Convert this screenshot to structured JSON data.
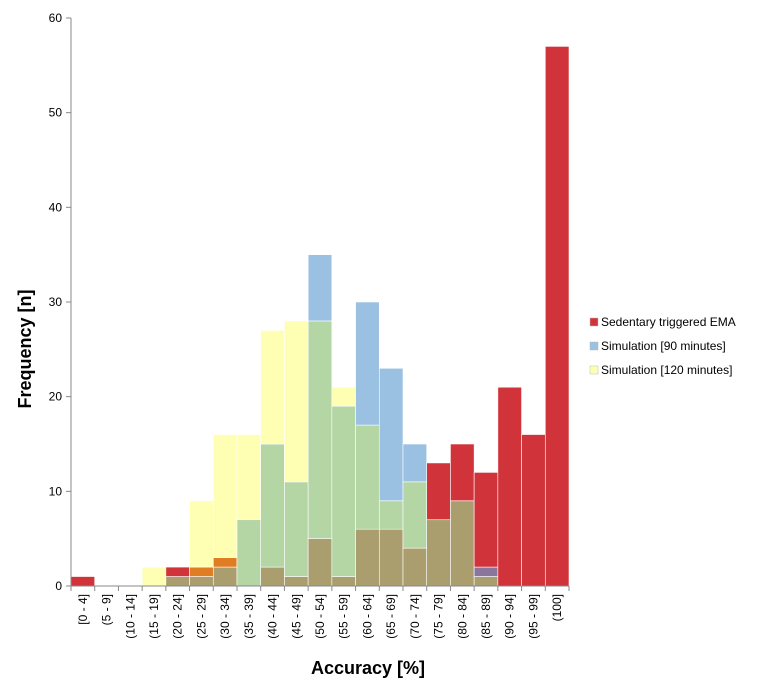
{
  "chart_data": {
    "type": "bar",
    "bar_mode": "overlay",
    "xlabel": "Accuracy [%]",
    "ylabel": "Frequency [n]",
    "ylim": [
      0,
      60
    ],
    "yticks": [
      0,
      10,
      20,
      30,
      40,
      50,
      60
    ],
    "grid": false,
    "legend_position": "right",
    "categories": [
      "[0 - 4]",
      "(5 - 9]",
      "(10 - 14]",
      "(15 - 19]",
      "(20 - 24]",
      "(25 - 29]",
      "(30 - 34]",
      "(35 - 39]",
      "(40 - 44]",
      "(45 - 49]",
      "(50 - 54]",
      "(55 - 59]",
      "(60 - 64]",
      "(65 - 69]",
      "(70 - 74]",
      "(75 - 79]",
      "(80 - 84]",
      "(85 - 89]",
      "(90 - 94]",
      "(95 - 99]",
      "(100]"
    ],
    "series": [
      {
        "name": "Sedentary triggered EMA",
        "color": "#d0343a",
        "values": [
          1,
          0,
          0,
          0,
          2,
          2,
          3,
          0,
          2,
          1,
          5,
          1,
          6,
          6,
          4,
          13,
          15,
          12,
          21,
          16,
          57
        ]
      },
      {
        "name": "Simulation [90 minutes]",
        "color": "#9ac0e2",
        "values": [
          0,
          0,
          0,
          0,
          1,
          1,
          2,
          7,
          15,
          11,
          35,
          19,
          30,
          23,
          15,
          7,
          9,
          2,
          0,
          0,
          0
        ]
      },
      {
        "name": "Simulation [120 minutes]",
        "color": "#ffffb3",
        "values": [
          0,
          0,
          0,
          2,
          1,
          9,
          16,
          16,
          27,
          28,
          28,
          21,
          17,
          9,
          11,
          7,
          9,
          1,
          0,
          0,
          0
        ]
      }
    ],
    "overlap_colors": {
      "ema_and_120": "#e07d23",
      "90_and_120": "#b4d5a4",
      "ema_and_90": "#8a769d",
      "all_three": "#aa9e6e"
    }
  }
}
